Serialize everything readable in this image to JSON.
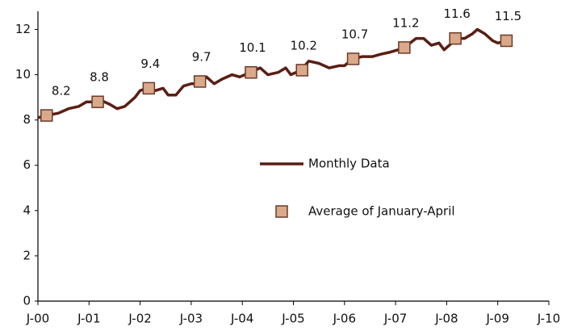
{
  "chart_data": {
    "type": "line",
    "xlim": [
      2000,
      2010
    ],
    "xticks": [
      {
        "value": 2000,
        "label": "J-00"
      },
      {
        "value": 2001,
        "label": "J-01"
      },
      {
        "value": 2002,
        "label": "J-02"
      },
      {
        "value": 2003,
        "label": "J-03"
      },
      {
        "value": 2004,
        "label": "J-04"
      },
      {
        "value": 2005,
        "label": "J-05"
      },
      {
        "value": 2006,
        "label": "J-06"
      },
      {
        "value": 2007,
        "label": "J-07"
      },
      {
        "value": 2008,
        "label": "J-08"
      },
      {
        "value": 2009,
        "label": "J-09"
      },
      {
        "value": 2010,
        "label": "J-10"
      }
    ],
    "ylim": [
      0,
      12.8
    ],
    "yticks": [
      0,
      2,
      4,
      6,
      8,
      10,
      12
    ],
    "grid": false,
    "series": [
      {
        "name": "Monthly Data",
        "color": "#5a1e14",
        "style": "line",
        "x": [
          2000.0,
          2000.17,
          2000.4,
          2000.6,
          2000.8,
          2000.95,
          2001.1,
          2001.2,
          2001.4,
          2001.55,
          2001.7,
          2001.9,
          2002.0,
          2002.15,
          2002.3,
          2002.45,
          2002.55,
          2002.7,
          2002.85,
          2003.0,
          2003.15,
          2003.3,
          2003.45,
          2003.6,
          2003.8,
          2003.95,
          2004.15,
          2004.35,
          2004.5,
          2004.7,
          2004.85,
          2004.95,
          2005.15,
          2005.3,
          2005.5,
          2005.7,
          2005.9,
          2006.0,
          2006.17,
          2006.35,
          2006.55,
          2006.7,
          2006.9,
          2007.05,
          2007.17,
          2007.4,
          2007.55,
          2007.7,
          2007.85,
          2007.95,
          2008.1,
          2008.17,
          2008.35,
          2008.5,
          2008.6,
          2008.75,
          2008.9,
          2009.0,
          2009.17
        ],
        "values": [
          8.1,
          8.2,
          8.3,
          8.5,
          8.6,
          8.8,
          8.8,
          8.9,
          8.7,
          8.5,
          8.6,
          9.0,
          9.3,
          9.4,
          9.3,
          9.4,
          9.1,
          9.1,
          9.5,
          9.6,
          9.6,
          9.9,
          9.6,
          9.8,
          10.0,
          9.9,
          10.1,
          10.3,
          10.0,
          10.1,
          10.3,
          10.0,
          10.2,
          10.6,
          10.5,
          10.3,
          10.4,
          10.4,
          10.7,
          10.8,
          10.8,
          10.9,
          11.0,
          11.1,
          11.2,
          11.6,
          11.6,
          11.3,
          11.4,
          11.1,
          11.4,
          11.6,
          11.6,
          11.8,
          12.0,
          11.8,
          11.5,
          11.4,
          11.5
        ]
      },
      {
        "name": "Average of January-April",
        "color": "#d9a98a",
        "style": "marker",
        "x": [
          2000.17,
          2001.17,
          2002.17,
          2003.17,
          2004.17,
          2005.17,
          2006.17,
          2007.17,
          2008.17,
          2009.17
        ],
        "values": [
          8.2,
          8.8,
          9.4,
          9.7,
          10.1,
          10.2,
          10.7,
          11.2,
          11.6,
          11.5
        ]
      }
    ]
  }
}
